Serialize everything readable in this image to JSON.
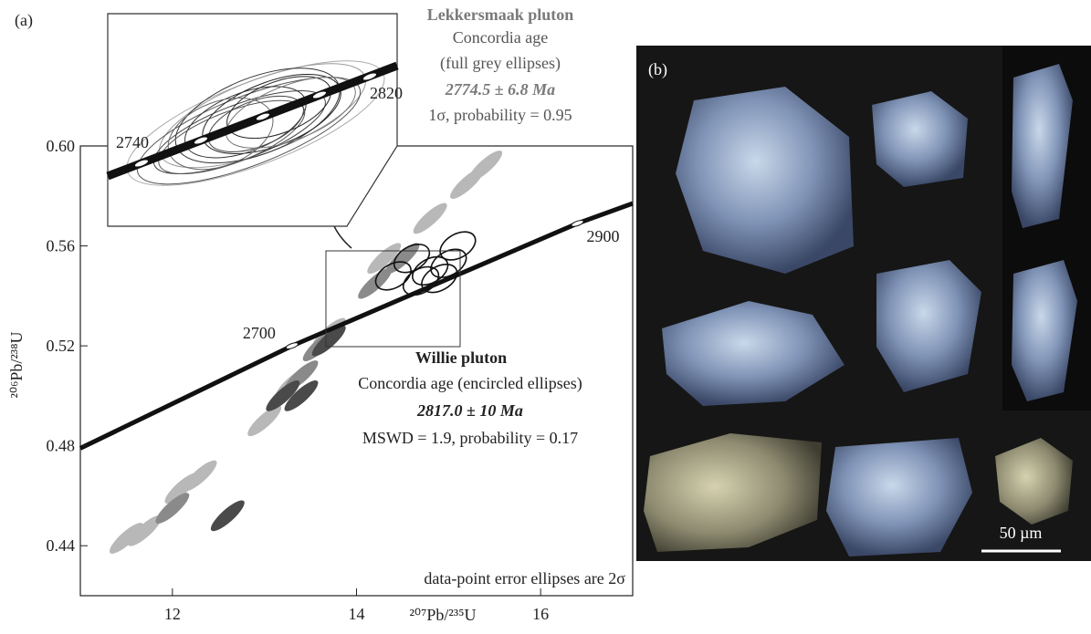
{
  "chart_data": {
    "type": "scatter",
    "panel_labels": [
      "(a)",
      "(b)"
    ],
    "xlabel": "²⁰⁷Pb/²³⁵U",
    "ylabel": "²⁰⁶Pb/²³⁸U",
    "xlim": [
      11,
      17
    ],
    "xticks": [
      12,
      14,
      16
    ],
    "ylim": [
      0.42,
      0.6
    ],
    "yticks": [
      {
        "value": 0.44,
        "label": "0.44"
      },
      {
        "value": 0.48,
        "label": "0.48"
      },
      {
        "value": 0.52,
        "label": "0.52"
      },
      {
        "value": 0.56,
        "label": "0.56"
      },
      {
        "value": 0.6,
        "label": "0.60"
      }
    ],
    "concordia": {
      "x": [
        11,
        13.3,
        16.4,
        17
      ],
      "y": [
        0.479,
        0.52,
        0.569,
        0.577
      ]
    },
    "age_markers": [
      {
        "label": 2700,
        "x": 13.3,
        "y": 0.52
      },
      {
        "label": 2900,
        "x": 16.4,
        "y": 0.569
      }
    ],
    "inset_labels": [
      2740,
      2820
    ],
    "series": [
      {
        "color": "#b8b8b8",
        "x": [
          11.5,
          11.7,
          12.1,
          12.3,
          13.0,
          13.3,
          13.7,
          14.3,
          14.8,
          15.2,
          15.4
        ],
        "y": [
          0.443,
          0.446,
          0.463,
          0.468,
          0.49,
          0.505,
          0.525,
          0.555,
          0.571,
          0.585,
          0.592
        ]
      },
      {
        "color": "#8a8a8a",
        "x": [
          12.0,
          13.4,
          13.6,
          14.2,
          14.5
        ],
        "y": [
          0.455,
          0.508,
          0.52,
          0.545,
          0.555
        ]
      },
      {
        "color": "#4a4a4a",
        "x": [
          12.6,
          13.2,
          13.4,
          13.7
        ],
        "y": [
          0.452,
          0.5,
          0.5,
          0.522
        ]
      },
      {
        "color": "#111111",
        "outline": true,
        "x": [
          14.4,
          14.6,
          14.7,
          14.8,
          14.9,
          15.0,
          15.1
        ],
        "y": [
          0.548,
          0.555,
          0.546,
          0.55,
          0.547,
          0.553,
          0.56
        ]
      }
    ],
    "annotations": {
      "lekkersmaak": [
        "Lekkersmaak pluton",
        "Concordia age",
        "(full grey ellipses)",
        "2774.5 ± 6.8 Ma",
        "1σ, probability = 0.95"
      ],
      "willie": [
        "Willie pluton",
        "Concordia age (encircled ellipses)",
        "2817.0 ± 10 Ma",
        "MSWD = 1.9, probability = 0.17"
      ],
      "note": "data-point error ellipses are 2σ",
      "scale_bar": "50 µm"
    }
  }
}
